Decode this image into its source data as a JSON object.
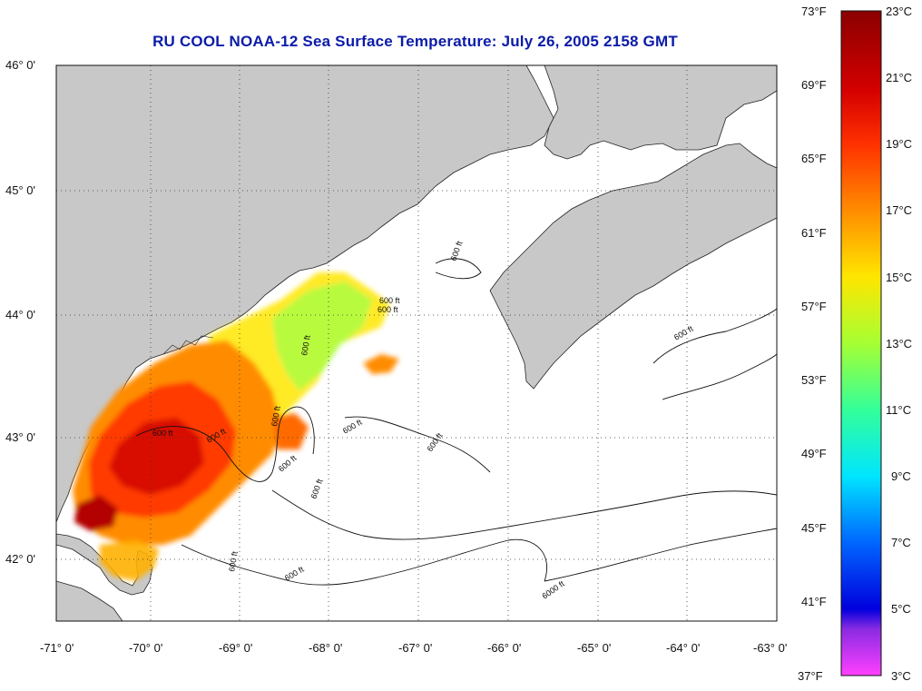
{
  "title": "RU COOL  NOAA-12  Sea Surface Temperature:  July 26, 2005 2158 GMT",
  "map": {
    "lon_labels": [
      "-71° 0'",
      "-70° 0'",
      "-69° 0'",
      "-68° 0'",
      "-67° 0'",
      "-66° 0'",
      "-65° 0'",
      "-64° 0'",
      "-63° 0'"
    ],
    "lat_labels": [
      "46° 0'",
      "45° 0'",
      "44° 0'",
      "43° 0'",
      "42° 0'"
    ],
    "contour_labels": [
      "600 ft",
      "600 ft",
      "600 ft",
      "600 ft",
      "600 ft",
      "600 ft",
      "600 ft",
      "600 ft",
      "600 ft",
      "600 ft",
      "600 ft",
      "600 ft",
      "600 ft",
      "600 ft",
      "6000 ft"
    ],
    "colors": {
      "land": "#c8c8c8",
      "ocean": "#ffffff",
      "grid": "#333333"
    }
  },
  "colorbar": {
    "fahrenheit_labels": [
      "73°F",
      "69°F",
      "65°F",
      "61°F",
      "57°F",
      "53°F",
      "49°F",
      "45°F",
      "41°F",
      "37°F"
    ],
    "celsius_labels": [
      "23°C",
      "21°C",
      "19°C",
      "17°C",
      "15°C",
      "13°C",
      "11°C",
      "9°C",
      "7°C",
      "5°C",
      "3°C"
    ],
    "range_c": [
      3,
      23
    ]
  }
}
